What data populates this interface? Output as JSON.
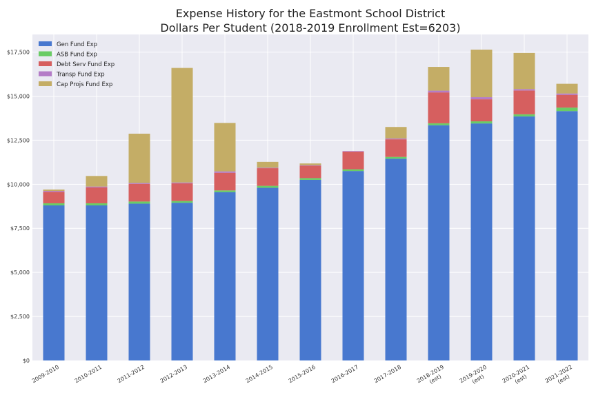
{
  "chart_data": {
    "type": "bar",
    "stacked": true,
    "title": "Expense History for the Eastmont School District",
    "subtitle": "Dollars Per Student (2018-2019 Enrollment Est=6203)",
    "xlabel": "",
    "ylabel": "",
    "ylim": [
      0,
      18500
    ],
    "yticks": [
      0,
      2500,
      5000,
      7500,
      10000,
      12500,
      15000,
      17500
    ],
    "ytick_labels": [
      "$0",
      "$2,500",
      "$5,000",
      "$7,500",
      "$10,000",
      "$12,500",
      "$15,000",
      "$17,500"
    ],
    "grid": true,
    "legend_position": "top-left",
    "categories": [
      [
        "2009-2010"
      ],
      [
        "2010-2011"
      ],
      [
        "2011-2012"
      ],
      [
        "2012-2013"
      ],
      [
        "2013-2014"
      ],
      [
        "2014-2015"
      ],
      [
        "2015-2016"
      ],
      [
        "2016-2017"
      ],
      [
        "2017-2018"
      ],
      [
        "2018-2019",
        "(est)"
      ],
      [
        "2019-2020",
        "(est)"
      ],
      [
        "2020-2021",
        "(est)"
      ],
      [
        "2021-2022",
        "(est)"
      ]
    ],
    "series": [
      {
        "name": "Gen Fund Exp",
        "color": "#4878cf",
        "values": [
          8800,
          8800,
          8900,
          8950,
          9550,
          9800,
          10250,
          10750,
          11450,
          13350,
          13450,
          13850,
          14150
        ]
      },
      {
        "name": "ASB Fund Exp",
        "color": "#6acc65",
        "values": [
          120,
          120,
          120,
          100,
          100,
          110,
          100,
          100,
          100,
          110,
          120,
          120,
          200
        ]
      },
      {
        "name": "Debt Serv Fund Exp",
        "color": "#d65f5f",
        "values": [
          650,
          900,
          1000,
          1000,
          1000,
          1000,
          700,
          1000,
          1000,
          1750,
          1250,
          1350,
          720
        ]
      },
      {
        "name": "Transp Fund Exp",
        "color": "#b47cc7",
        "values": [
          50,
          50,
          50,
          50,
          80,
          30,
          30,
          30,
          50,
          100,
          120,
          80,
          80
        ]
      },
      {
        "name": "Cap Projs Fund Exp",
        "color": "#c4ad66",
        "values": [
          80,
          600,
          2800,
          6500,
          2750,
          330,
          100,
          0,
          650,
          1350,
          2700,
          2050,
          550
        ]
      }
    ]
  }
}
